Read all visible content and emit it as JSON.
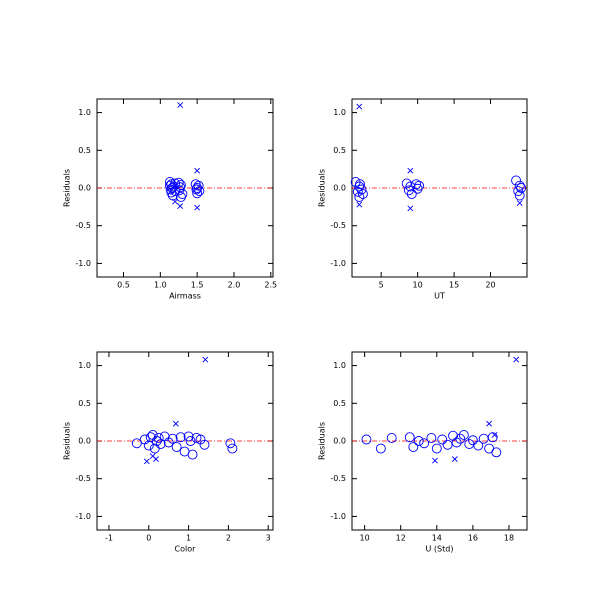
{
  "chart_data": [
    {
      "type": "scatter",
      "xlabel": "Airmass",
      "ylabel": "Residuals",
      "xlim": [
        0.14,
        2.53
      ],
      "ylim": [
        -1.18,
        1.18
      ],
      "xticks": [
        0.5,
        {
          "value": 1,
          "label": "1.0"
        },
        1.5,
        {
          "value": 2,
          "label": "2.0"
        },
        2.5
      ],
      "yticks": [
        {
          "value": -1,
          "label": "-1.0"
        },
        -0.5,
        {
          "value": 0,
          "label": "0.0"
        },
        0.5,
        {
          "value": 1,
          "label": "1.0"
        }
      ],
      "hline": 0,
      "hline_color": "#ff0000",
      "series": [
        {
          "marker": "circle",
          "color": "#0000ff",
          "x": [
            1.13,
            1.13,
            1.14,
            1.15,
            1.15,
            1.16,
            1.17,
            1.18,
            1.2,
            1.2,
            1.25,
            1.26,
            1.27,
            1.28,
            1.28,
            1.3,
            1.48,
            1.49,
            1.5,
            1.5,
            1.52,
            1.53
          ],
          "values": [
            0.08,
            0.03,
            -0.02,
            0.05,
            -0.06,
            0.0,
            -0.1,
            0.02,
            -0.04,
            0.06,
            0.07,
            -0.03,
            0.01,
            -0.12,
            0.04,
            -0.08,
            0.05,
            -0.02,
            0.0,
            -0.07,
            0.03,
            -0.04
          ]
        },
        {
          "marker": "x",
          "color": "#0000ff",
          "x": [
            1.27,
            1.5,
            1.5,
            1.27,
            1.2
          ],
          "values": [
            1.1,
            0.23,
            -0.26,
            -0.24,
            -0.18
          ]
        }
      ]
    },
    {
      "type": "scatter",
      "xlabel": "UT",
      "ylabel": "Residuals",
      "xlim": [
        1,
        25
      ],
      "ylim": [
        -1.18,
        1.18
      ],
      "xticks": [
        5,
        10,
        15,
        20
      ],
      "yticks": [
        {
          "value": -1,
          "label": "-1.0"
        },
        -0.5,
        {
          "value": 0,
          "label": "0.0"
        },
        0.5,
        {
          "value": 1,
          "label": "1.0"
        }
      ],
      "hline": 0,
      "hline_color": "#ff0000",
      "series": [
        {
          "marker": "circle",
          "color": "#0000ff",
          "x": [
            1.5,
            1.8,
            2,
            2,
            2.1,
            2.3,
            2.5,
            8.5,
            8.8,
            9,
            9.2,
            9.8,
            10,
            10.2,
            23.5,
            23.8,
            24,
            24,
            24.2
          ],
          "values": [
            0.08,
            -0.05,
            0.02,
            -0.12,
            0.05,
            -0.02,
            -0.08,
            0.06,
            -0.03,
            0.02,
            -0.08,
            0.05,
            -0.01,
            0.03,
            0.1,
            -0.04,
            0.03,
            -0.1,
            0.0
          ]
        },
        {
          "marker": "x",
          "color": "#0000ff",
          "x": [
            2,
            9,
            9,
            2,
            24
          ],
          "values": [
            1.08,
            0.23,
            -0.27,
            -0.22,
            -0.2
          ]
        }
      ]
    },
    {
      "type": "scatter",
      "xlabel": "Color",
      "ylabel": "Residuals",
      "xlim": [
        -1.3,
        3.12
      ],
      "ylim": [
        -1.18,
        1.18
      ],
      "xticks": [
        -1,
        0,
        1,
        2,
        3
      ],
      "yticks": [
        {
          "value": -1,
          "label": "-1.0"
        },
        -0.5,
        {
          "value": 0,
          "label": "0.0"
        },
        0.5,
        {
          "value": 1,
          "label": "1.0"
        }
      ],
      "hline": 0,
      "hline_color": "#ff0000",
      "series": [
        {
          "marker": "circle",
          "color": "#0000ff",
          "x": [
            -0.3,
            -0.1,
            0,
            0.05,
            0.1,
            0.15,
            0.2,
            0.25,
            0.3,
            0.4,
            0.5,
            0.6,
            0.7,
            0.8,
            0.9,
            1.0,
            1.05,
            1.1,
            1.2,
            1.3,
            1.4,
            2.05,
            2.1
          ],
          "values": [
            -0.03,
            0.02,
            -0.06,
            0.05,
            0.08,
            -0.1,
            0.0,
            0.04,
            -0.04,
            0.06,
            -0.02,
            0.03,
            -0.08,
            0.05,
            -0.14,
            0.06,
            0.0,
            -0.18,
            0.04,
            0.02,
            -0.05,
            -0.03,
            -0.1
          ]
        },
        {
          "marker": "x",
          "color": "#0000ff",
          "x": [
            1.42,
            0.68,
            -0.05,
            0.18,
            0.1
          ],
          "values": [
            1.08,
            0.23,
            -0.27,
            -0.24,
            -0.2
          ]
        }
      ]
    },
    {
      "type": "scatter",
      "xlabel": "U (Std)",
      "ylabel": "Residuals",
      "xlim": [
        9.3,
        19.0
      ],
      "ylim": [
        -1.18,
        1.18
      ],
      "xticks": [
        10,
        12,
        14,
        16,
        18
      ],
      "yticks": [
        {
          "value": -1,
          "label": "-1.0"
        },
        -0.5,
        {
          "value": 0,
          "label": "0.0"
        },
        0.5,
        {
          "value": 1,
          "label": "1.0"
        }
      ],
      "hline": 0,
      "hline_color": "#ff0000",
      "series": [
        {
          "marker": "circle",
          "color": "#0000ff",
          "x": [
            10.1,
            10.9,
            11.5,
            12.5,
            12.7,
            13,
            13.3,
            13.7,
            14,
            14.3,
            14.6,
            14.9,
            15.1,
            15.3,
            15.5,
            15.8,
            16,
            16.3,
            16.6,
            16.9,
            17.1,
            17.3
          ],
          "values": [
            0.02,
            -0.1,
            0.04,
            0.05,
            -0.08,
            0.0,
            -0.03,
            0.04,
            -0.1,
            0.02,
            -0.05,
            0.07,
            -0.02,
            0.03,
            0.08,
            -0.04,
            0.01,
            -0.06,
            0.03,
            -0.1,
            0.05,
            -0.15
          ]
        },
        {
          "marker": "x",
          "color": "#0000ff",
          "x": [
            18.4,
            16.9,
            13.9,
            15,
            17.2
          ],
          "values": [
            1.08,
            0.23,
            -0.26,
            -0.24,
            0.08
          ]
        }
      ]
    }
  ]
}
